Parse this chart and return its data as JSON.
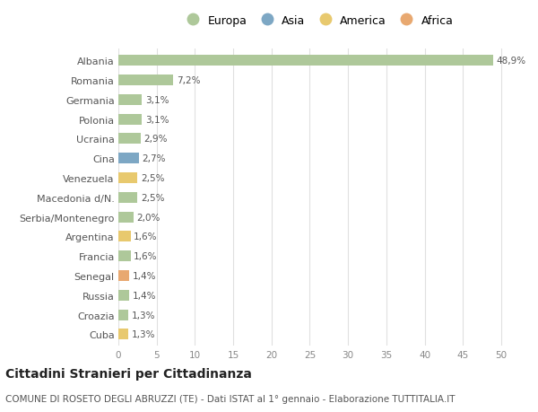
{
  "countries": [
    "Albania",
    "Romania",
    "Germania",
    "Polonia",
    "Ucraina",
    "Cina",
    "Venezuela",
    "Macedonia d/N.",
    "Serbia/Montenegro",
    "Argentina",
    "Francia",
    "Senegal",
    "Russia",
    "Croazia",
    "Cuba"
  ],
  "values": [
    48.9,
    7.2,
    3.1,
    3.1,
    2.9,
    2.7,
    2.5,
    2.5,
    2.0,
    1.6,
    1.6,
    1.4,
    1.4,
    1.3,
    1.3
  ],
  "labels": [
    "48,9%",
    "7,2%",
    "3,1%",
    "3,1%",
    "2,9%",
    "2,7%",
    "2,5%",
    "2,5%",
    "2,0%",
    "1,6%",
    "1,6%",
    "1,4%",
    "1,4%",
    "1,3%",
    "1,3%"
  ],
  "colors": [
    "#aec89a",
    "#aec89a",
    "#aec89a",
    "#aec89a",
    "#aec89a",
    "#7da7c4",
    "#e8c96e",
    "#aec89a",
    "#aec89a",
    "#e8c96e",
    "#aec89a",
    "#e8a870",
    "#aec89a",
    "#aec89a",
    "#e8c96e"
  ],
  "legend_labels": [
    "Europa",
    "Asia",
    "America",
    "Africa"
  ],
  "legend_colors": [
    "#aec89a",
    "#7da7c4",
    "#e8c96e",
    "#e8a870"
  ],
  "title": "Cittadini Stranieri per Cittadinanza",
  "subtitle": "COMUNE DI ROSETO DEGLI ABRUZZI (TE) - Dati ISTAT al 1° gennaio - Elaborazione TUTTITALIA.IT",
  "xlim": [
    0,
    52
  ],
  "xticks": [
    0,
    5,
    10,
    15,
    20,
    25,
    30,
    35,
    40,
    45,
    50
  ],
  "bg_color": "#ffffff",
  "plot_bg_color": "#ffffff",
  "bar_height": 0.55,
  "label_fontsize": 7.5,
  "ytick_fontsize": 8,
  "xtick_fontsize": 7.5,
  "title_fontsize": 10,
  "subtitle_fontsize": 7.5,
  "grid_color": "#e0e0e0",
  "label_color": "#555555",
  "ytick_color": "#555555"
}
